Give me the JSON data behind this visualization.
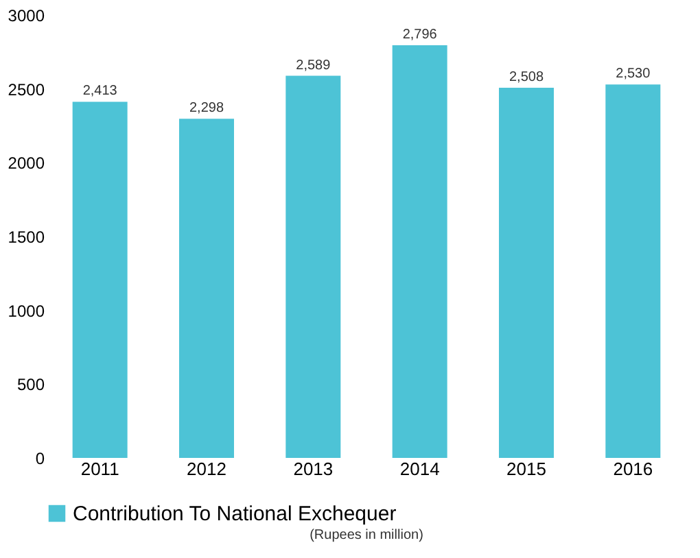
{
  "chart_data": {
    "type": "bar",
    "categories": [
      "2011",
      "2012",
      "2013",
      "2014",
      "2015",
      "2016"
    ],
    "series": [
      {
        "name": "Contribution To National Exchequer",
        "color": "#4dc3d6",
        "values": [
          2413,
          2298,
          2589,
          2796,
          2508,
          2530
        ]
      }
    ],
    "value_labels": [
      "2,413",
      "2,298",
      "2,589",
      "2,796",
      "2,508",
      "2,530"
    ],
    "ylim": [
      0,
      3000
    ],
    "yticks": [
      0,
      500,
      1000,
      1500,
      2000,
      2500,
      3000
    ],
    "grid": false,
    "legend": "bottom",
    "annotations": [
      "(Rupees in million)"
    ]
  }
}
